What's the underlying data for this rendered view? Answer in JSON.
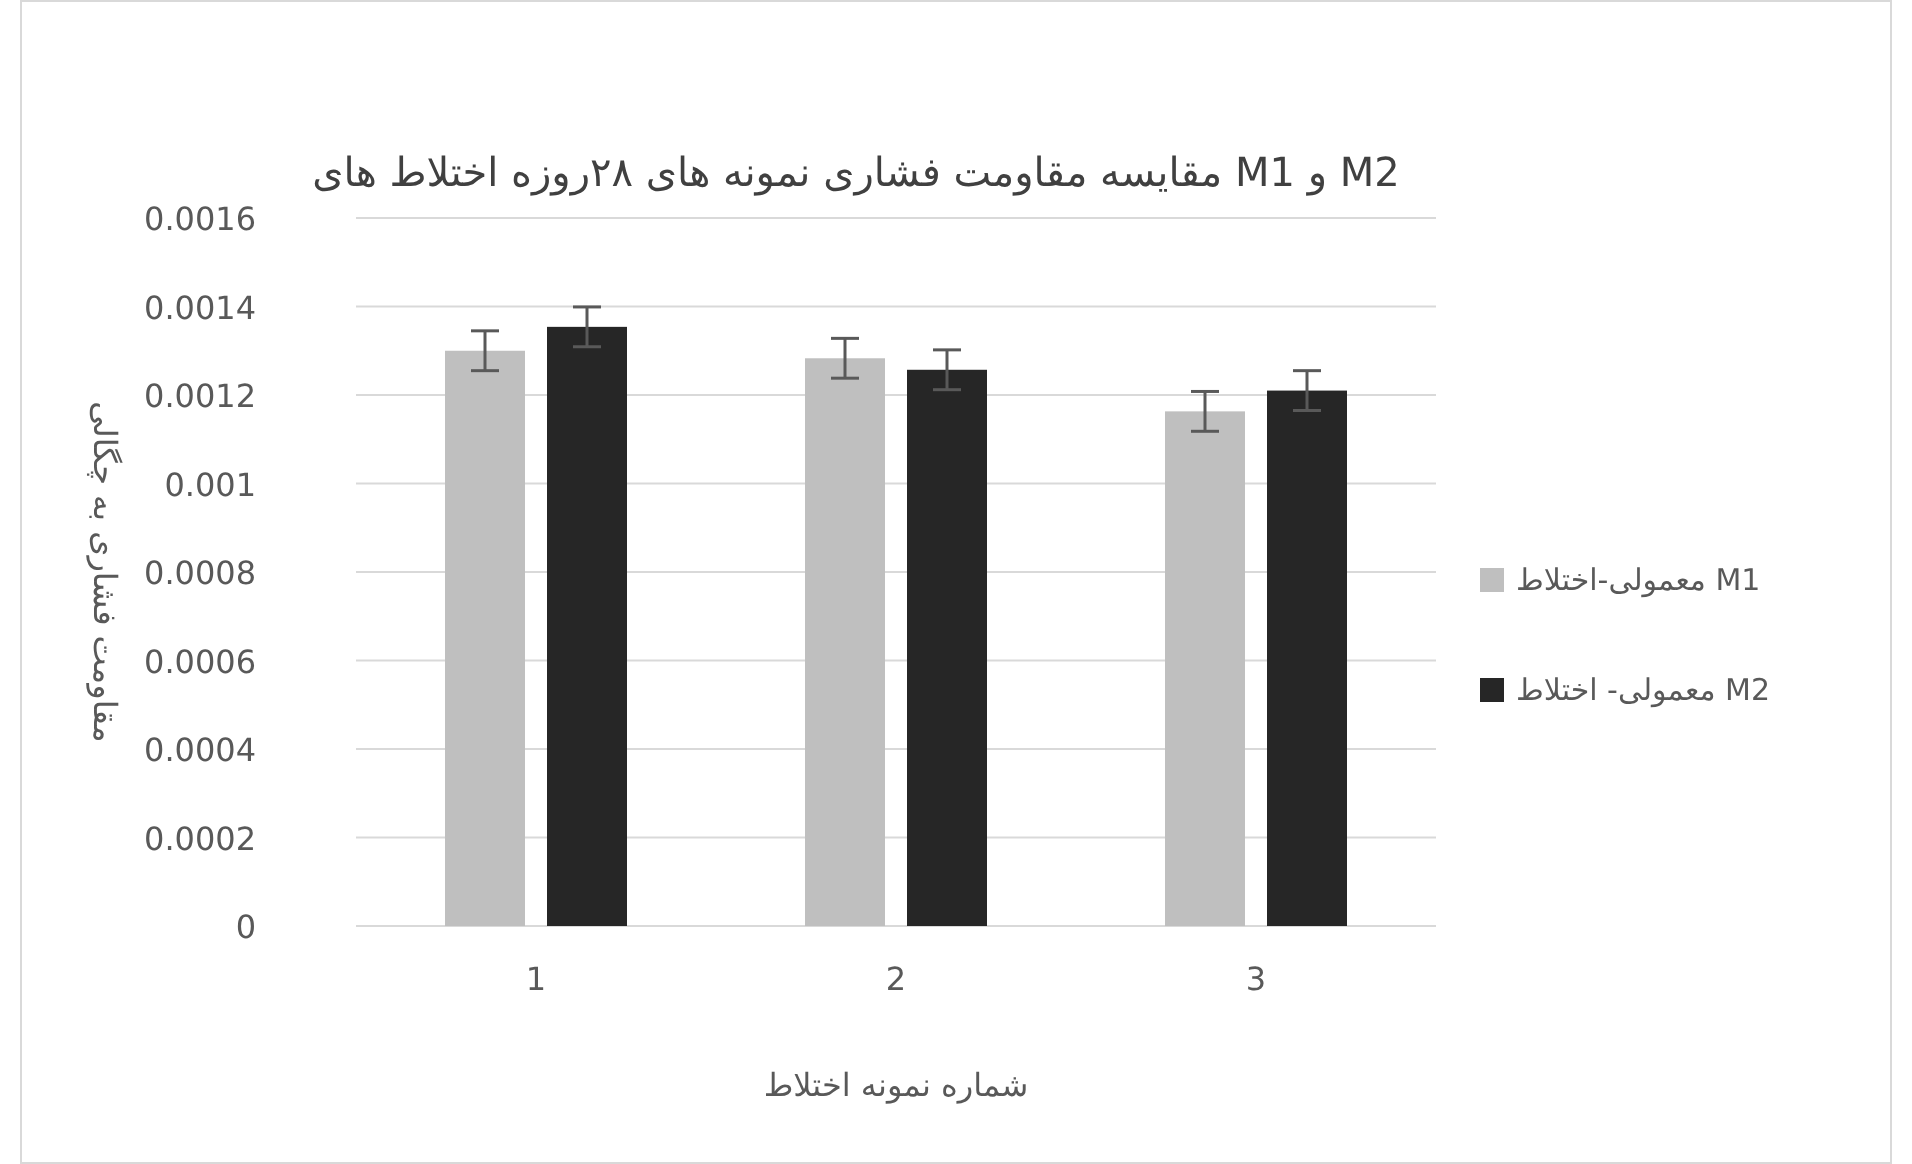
{
  "chart_data": {
    "type": "bar",
    "title": "مقایسه مقاومت فشاری نمونه های ۲۸روزه اختلاط های M1 و M2",
    "xlabel": "شماره نمونه اختلاط",
    "ylabel": "مقاومت فشاری به چگالی",
    "categories": [
      "1",
      "2",
      "3"
    ],
    "series": [
      {
        "name": "معمولی-اختلاط M1",
        "color": "#bfbfbf",
        "values": [
          0.0013,
          0.001283,
          0.001163
        ],
        "errors": [
          4.5e-05,
          4.5e-05,
          4.5e-05
        ]
      },
      {
        "name": "معمولی- اختلاط M2",
        "color": "#262626",
        "values": [
          0.001354,
          0.001257,
          0.00121
        ],
        "errors": [
          4.5e-05,
          4.5e-05,
          4.5e-05
        ]
      }
    ],
    "ylim": [
      0,
      0.0016
    ],
    "yticks": [
      0,
      0.0002,
      0.0004,
      0.0006,
      0.0008,
      0.001,
      0.0012,
      0.0014,
      0.0016
    ],
    "grid": "y",
    "legend": "right"
  }
}
